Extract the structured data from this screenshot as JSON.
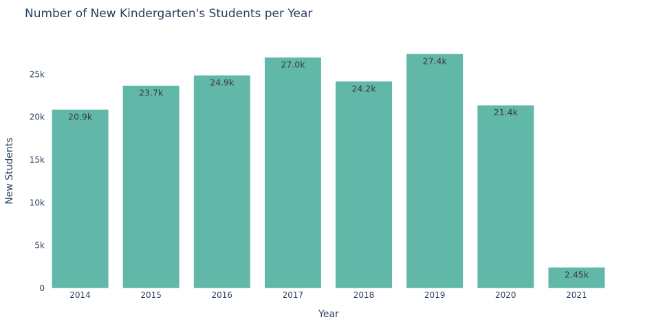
{
  "chart_data": {
    "type": "bar",
    "title": "Number of New Kindergarten's Students per Year",
    "xlabel": "Year",
    "ylabel": "New Students",
    "categories": [
      "2014",
      "2015",
      "2016",
      "2017",
      "2018",
      "2019",
      "2020",
      "2021"
    ],
    "values": [
      20900,
      23700,
      24900,
      27000,
      24200,
      27400,
      21400,
      2450
    ],
    "data_labels": [
      "20.9k",
      "23.7k",
      "24.9k",
      "27.0k",
      "24.2k",
      "27.4k",
      "21.4k",
      "2.45k"
    ],
    "y_ticks": [
      0,
      5000,
      10000,
      15000,
      20000,
      25000
    ],
    "y_tick_labels": [
      "0",
      "5k",
      "10k",
      "15k",
      "20k",
      "25k"
    ],
    "ylim": [
      0,
      28800
    ],
    "grid": false,
    "legend": "none",
    "bar_color": "#62b8a8"
  }
}
